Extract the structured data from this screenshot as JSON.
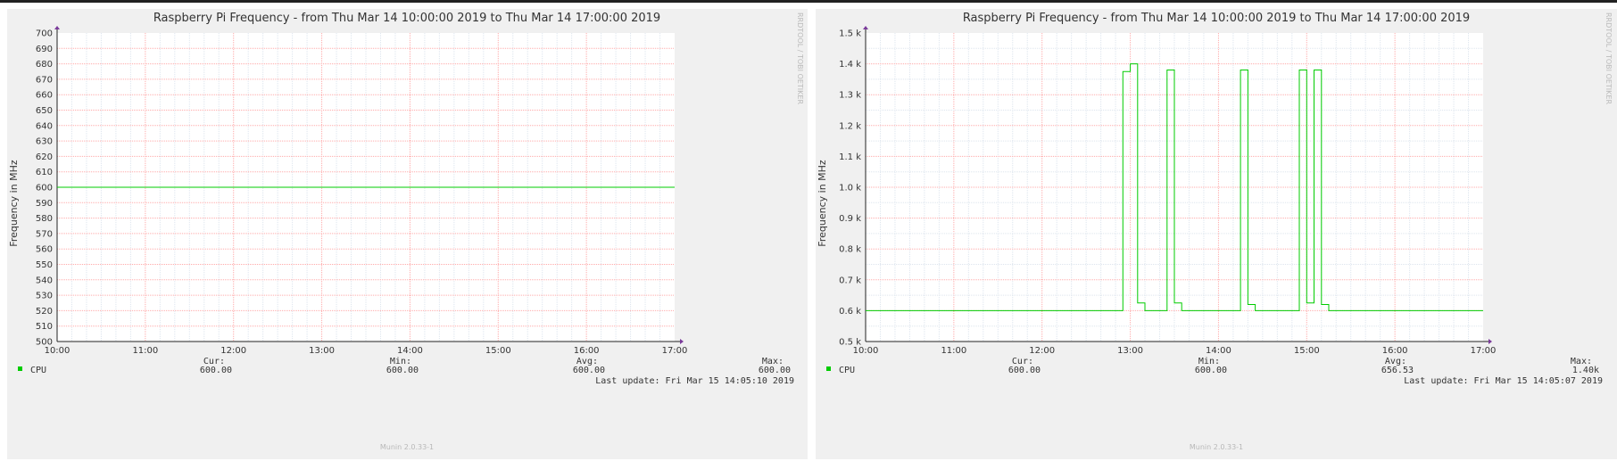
{
  "colors": {
    "series": "#00cc00",
    "grid_major": "#ffaaaa",
    "grid_minor": "#dde5ee",
    "panel_bg": "#f0f0f0",
    "plot_bg": "#ffffff"
  },
  "chart_data": [
    {
      "type": "line",
      "title": "Raspberry Pi Frequency - from Thu Mar 14 10:00:00 2019 to Thu Mar 14 17:00:00 2019",
      "ylabel": "Frequency in MHz",
      "xlim": [
        "10:00",
        "17:00"
      ],
      "ylim": [
        500,
        700
      ],
      "x_ticks": [
        "10:00",
        "11:00",
        "12:00",
        "13:00",
        "14:00",
        "15:00",
        "16:00",
        "17:00"
      ],
      "y_ticks": [
        "500",
        "510",
        "520",
        "530",
        "540",
        "550",
        "560",
        "570",
        "580",
        "590",
        "600",
        "610",
        "620",
        "630",
        "640",
        "650",
        "660",
        "670",
        "680",
        "690",
        "700"
      ],
      "grid": true,
      "series": [
        {
          "name": "CPU",
          "color": "#00cc00",
          "x": [
            "10:00",
            "17:00"
          ],
          "y": [
            600,
            600
          ]
        }
      ],
      "legend": {
        "label": "CPU",
        "cur_label": "Cur:",
        "cur": "600.00",
        "min_label": "Min:",
        "min": "600.00",
        "avg_label": "Avg:",
        "avg": "600.00",
        "max_label": "Max:",
        "max": "600.00"
      },
      "last_update": "Last update: Fri Mar 15 14:05:10 2019",
      "side_text": "RRDTOOL / TOBI OETIKER",
      "footer": "Munin 2.0.33-1"
    },
    {
      "type": "line",
      "title": "Raspberry Pi Frequency - from Thu Mar 14 10:00:00 2019 to Thu Mar 14 17:00:00 2019",
      "ylabel": "Frequency in MHz",
      "xlim": [
        "10:00",
        "17:00"
      ],
      "ylim": [
        500,
        1500
      ],
      "x_ticks": [
        "10:00",
        "11:00",
        "12:00",
        "13:00",
        "14:00",
        "15:00",
        "16:00",
        "17:00"
      ],
      "y_ticks": [
        "0.5 k",
        "0.6 k",
        "0.7 k",
        "0.8 k",
        "0.9 k",
        "1.0 k",
        "1.1 k",
        "1.2 k",
        "1.3 k",
        "1.4 k",
        "1.5 k"
      ],
      "grid": true,
      "series": [
        {
          "name": "CPU",
          "color": "#00cc00",
          "x": [
            "10:00",
            "12:55",
            "12:55",
            "13:00",
            "13:00",
            "13:05",
            "13:05",
            "13:10",
            "13:10",
            "13:25",
            "13:25",
            "13:30",
            "13:30",
            "13:35",
            "13:35",
            "14:15",
            "14:15",
            "14:20",
            "14:20",
            "14:25",
            "14:25",
            "14:55",
            "14:55",
            "15:00",
            "15:00",
            "15:05",
            "15:05",
            "15:10",
            "15:10",
            "15:15",
            "15:15",
            "15:20",
            "15:20",
            "17:00"
          ],
          "y": [
            600,
            600,
            1375,
            1375,
            1400,
            1400,
            625,
            625,
            600,
            600,
            1380,
            1380,
            625,
            625,
            600,
            600,
            1380,
            1380,
            620,
            620,
            600,
            600,
            1380,
            1380,
            625,
            625,
            1380,
            1380,
            620,
            620,
            600,
            600,
            600,
            600
          ]
        }
      ],
      "legend": {
        "label": "CPU",
        "cur_label": "Cur:",
        "cur": "600.00",
        "min_label": "Min:",
        "min": "600.00",
        "avg_label": "Avg:",
        "avg": "656.53",
        "max_label": "Max:",
        "max": "1.40k"
      },
      "last_update": "Last update: Fri Mar 15 14:05:07 2019",
      "side_text": "RRDTOOL / TOBI OETIKER",
      "footer": "Munin 2.0.33-1"
    }
  ]
}
